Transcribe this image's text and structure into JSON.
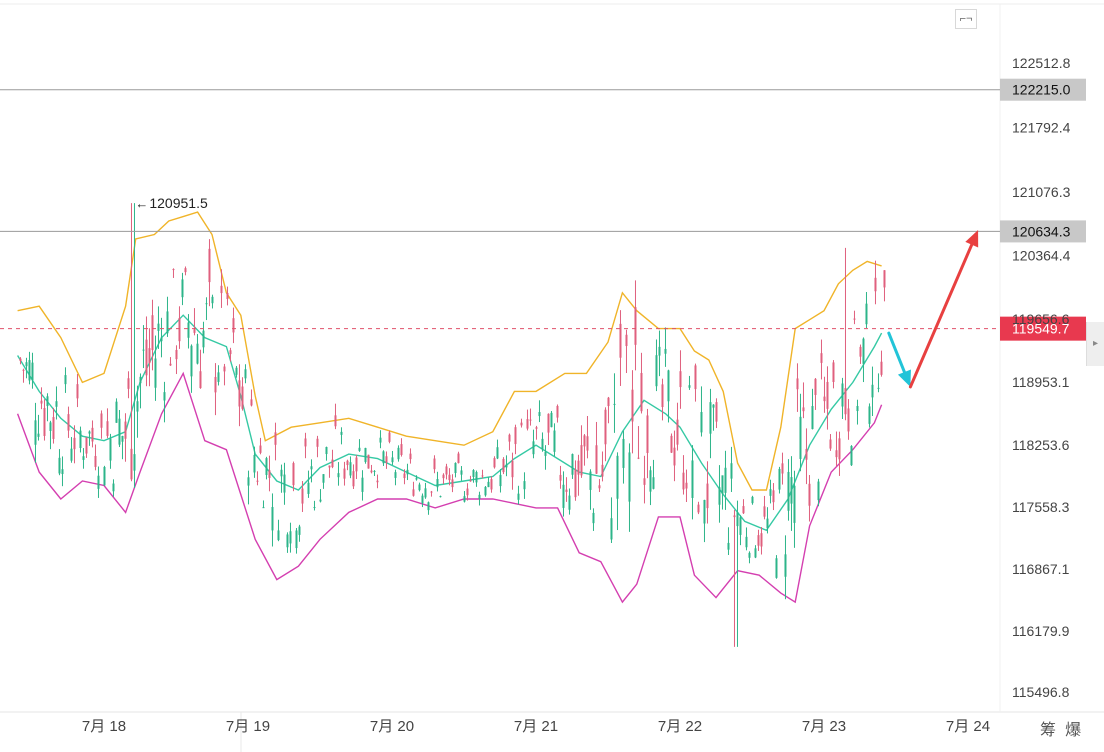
{
  "chart_data": {
    "type": "candlestick",
    "y_ticks": [
      "122512.8",
      "121792.4",
      "121076.3",
      "120364.4",
      "119656.6",
      "118953.1",
      "118253.6",
      "117558.3",
      "116867.1",
      "116179.9",
      "115496.8"
    ],
    "ylim": [
      115100,
      123000
    ],
    "x_ticks": [
      "7月 18",
      "7月 19",
      "7月 20",
      "7月 21",
      "7月 22",
      "7月 23",
      "7月 24"
    ],
    "xlim": [
      17.4,
      24.6
    ],
    "price_lines": [
      {
        "value": 122215.0,
        "label": "122215.0"
      },
      {
        "value": 120634.3,
        "label": "120634.3"
      }
    ],
    "current_price": {
      "value": 119549.7,
      "label": "119549.7"
    },
    "high_annotation": {
      "value": 120951.5,
      "label": "120951.5",
      "x": 18.19
    },
    "projection_arrows": [
      {
        "color": "#22c4d8",
        "from": [
          23.45,
          119500
        ],
        "to": [
          23.6,
          118900
        ]
      },
      {
        "color": "#e84040",
        "from": [
          23.6,
          118900
        ],
        "to": [
          24.07,
          120650
        ]
      }
    ],
    "bands": {
      "upper": [
        [
          17.4,
          119750
        ],
        [
          17.55,
          119800
        ],
        [
          17.7,
          119450
        ],
        [
          17.85,
          118950
        ],
        [
          18.0,
          119050
        ],
        [
          18.15,
          119800
        ],
        [
          18.22,
          120550
        ],
        [
          18.35,
          120600
        ],
        [
          18.45,
          120750
        ],
        [
          18.55,
          120800
        ],
        [
          18.65,
          120850
        ],
        [
          18.75,
          120600
        ],
        [
          18.85,
          119950
        ],
        [
          18.95,
          119700
        ],
        [
          19.05,
          118800
        ],
        [
          19.12,
          118300
        ],
        [
          19.3,
          118450
        ],
        [
          19.5,
          118500
        ],
        [
          19.7,
          118550
        ],
        [
          19.9,
          118450
        ],
        [
          20.1,
          118350
        ],
        [
          20.3,
          118300
        ],
        [
          20.5,
          118250
        ],
        [
          20.7,
          118400
        ],
        [
          20.85,
          118850
        ],
        [
          21.0,
          118850
        ],
        [
          21.2,
          119050
        ],
        [
          21.35,
          119050
        ],
        [
          21.5,
          119400
        ],
        [
          21.6,
          119950
        ],
        [
          21.7,
          119750
        ],
        [
          21.85,
          119550
        ],
        [
          22.0,
          119550
        ],
        [
          22.1,
          119300
        ],
        [
          22.2,
          119200
        ],
        [
          22.3,
          118850
        ],
        [
          22.4,
          118050
        ],
        [
          22.5,
          117750
        ],
        [
          22.6,
          117750
        ],
        [
          22.7,
          118450
        ],
        [
          22.8,
          119550
        ],
        [
          22.9,
          119650
        ],
        [
          23.0,
          119750
        ],
        [
          23.1,
          120050
        ],
        [
          23.2,
          120200
        ],
        [
          23.3,
          120300
        ],
        [
          23.4,
          120250
        ]
      ],
      "middle": [
        [
          17.4,
          119250
        ],
        [
          17.55,
          118850
        ],
        [
          17.7,
          118550
        ],
        [
          17.85,
          118350
        ],
        [
          18.0,
          118300
        ],
        [
          18.15,
          118400
        ],
        [
          18.25,
          118950
        ],
        [
          18.4,
          119450
        ],
        [
          18.55,
          119700
        ],
        [
          18.7,
          119450
        ],
        [
          18.85,
          119350
        ],
        [
          18.95,
          118800
        ],
        [
          19.05,
          118150
        ],
        [
          19.2,
          117850
        ],
        [
          19.35,
          117750
        ],
        [
          19.5,
          118000
        ],
        [
          19.7,
          118150
        ],
        [
          19.9,
          118100
        ],
        [
          20.1,
          117950
        ],
        [
          20.3,
          117800
        ],
        [
          20.5,
          117850
        ],
        [
          20.7,
          117900
        ],
        [
          20.85,
          118100
        ],
        [
          21.0,
          118250
        ],
        [
          21.15,
          118100
        ],
        [
          21.3,
          117950
        ],
        [
          21.45,
          117900
        ],
        [
          21.6,
          118400
        ],
        [
          21.75,
          118750
        ],
        [
          21.9,
          118600
        ],
        [
          22.0,
          118450
        ],
        [
          22.15,
          118050
        ],
        [
          22.3,
          117700
        ],
        [
          22.45,
          117400
        ],
        [
          22.6,
          117300
        ],
        [
          22.75,
          117650
        ],
        [
          22.9,
          118250
        ],
        [
          23.05,
          118650
        ],
        [
          23.2,
          118950
        ],
        [
          23.35,
          119350
        ],
        [
          23.4,
          119500
        ]
      ],
      "lower": [
        [
          17.4,
          118600
        ],
        [
          17.55,
          117950
        ],
        [
          17.7,
          117650
        ],
        [
          17.85,
          117850
        ],
        [
          18.0,
          117800
        ],
        [
          18.15,
          117500
        ],
        [
          18.25,
          117950
        ],
        [
          18.4,
          118600
        ],
        [
          18.55,
          119050
        ],
        [
          18.7,
          118300
        ],
        [
          18.85,
          118200
        ],
        [
          18.95,
          117700
        ],
        [
          19.05,
          117200
        ],
        [
          19.2,
          116750
        ],
        [
          19.35,
          116900
        ],
        [
          19.5,
          117200
        ],
        [
          19.7,
          117500
        ],
        [
          19.9,
          117650
        ],
        [
          20.1,
          117650
        ],
        [
          20.3,
          117550
        ],
        [
          20.5,
          117650
        ],
        [
          20.7,
          117650
        ],
        [
          20.85,
          117600
        ],
        [
          21.0,
          117550
        ],
        [
          21.15,
          117550
        ],
        [
          21.3,
          117050
        ],
        [
          21.45,
          116950
        ],
        [
          21.6,
          116500
        ],
        [
          21.7,
          116700
        ],
        [
          21.85,
          117450
        ],
        [
          22.0,
          117450
        ],
        [
          22.1,
          116800
        ],
        [
          22.25,
          116550
        ],
        [
          22.4,
          116850
        ],
        [
          22.55,
          116800
        ],
        [
          22.7,
          116600
        ],
        [
          22.8,
          116500
        ],
        [
          22.9,
          117350
        ],
        [
          23.05,
          117950
        ],
        [
          23.2,
          118200
        ],
        [
          23.35,
          118500
        ],
        [
          23.4,
          118700
        ]
      ]
    }
  }
}
